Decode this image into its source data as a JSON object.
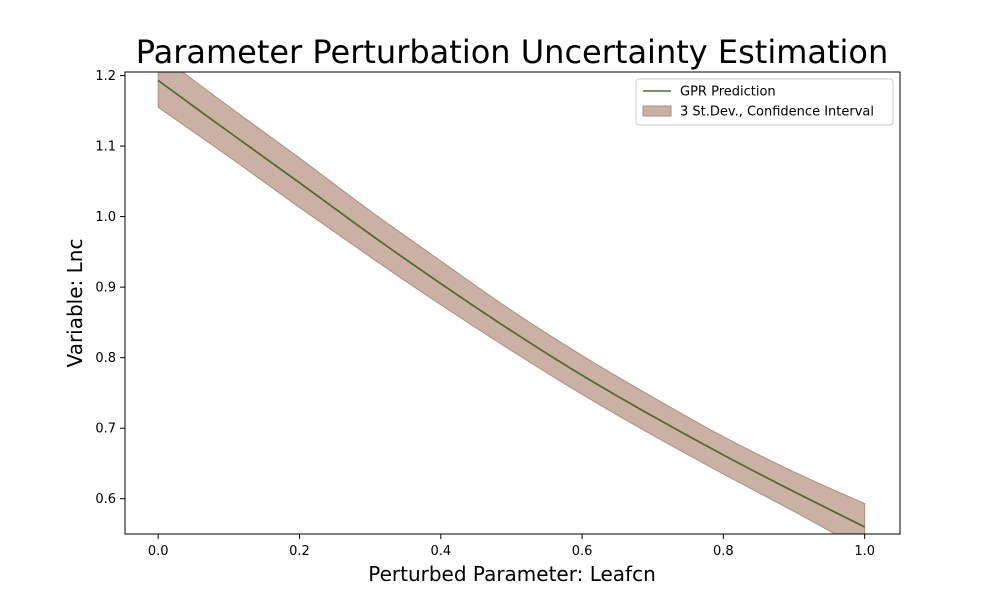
{
  "chart_data": {
    "type": "line",
    "title": "Parameter Perturbation Uncertainty Estimation",
    "xlabel": "Perturbed Parameter: Leafcn",
    "ylabel": "Variable: Lnc",
    "xlim": [
      -0.047,
      1.05
    ],
    "ylim": [
      0.55,
      1.205
    ],
    "x_ticks": [
      0.0,
      0.2,
      0.4,
      0.6,
      0.8,
      1.0
    ],
    "x_tick_labels": [
      "0.0",
      "0.2",
      "0.4",
      "0.6",
      "0.8",
      "1.0"
    ],
    "y_ticks": [
      0.6,
      0.7,
      0.8,
      0.9,
      1.0,
      1.1,
      1.2
    ],
    "y_tick_labels": [
      "0.6",
      "0.7",
      "0.8",
      "0.9",
      "1.0",
      "1.1",
      "1.2"
    ],
    "grid": false,
    "legend_position": "top-right",
    "series": [
      {
        "name": "GPR Prediction",
        "kind": "line",
        "color": "#556b2f",
        "x": [
          0.0,
          0.1,
          0.2,
          0.3,
          0.4,
          0.5,
          0.6,
          0.7,
          0.8,
          0.9,
          1.0
        ],
        "y": [
          1.193,
          1.12,
          1.048,
          0.975,
          0.905,
          0.838,
          0.775,
          0.717,
          0.662,
          0.61,
          0.56
        ]
      },
      {
        "name": "3 St.Dev., Confidence Interval",
        "kind": "band",
        "color": "#bc9b8c",
        "edge_color": "#ad8c7c",
        "x": [
          0.0,
          0.1,
          0.2,
          0.3,
          0.4,
          0.5,
          0.6,
          0.7,
          0.8,
          0.9,
          1.0
        ],
        "lower": [
          1.155,
          1.085,
          1.013,
          0.943,
          0.875,
          0.81,
          0.748,
          0.69,
          0.635,
          0.582,
          0.527
        ],
        "upper": [
          1.231,
          1.156,
          1.083,
          1.008,
          0.937,
          0.867,
          0.803,
          0.744,
          0.688,
          0.638,
          0.593
        ]
      }
    ]
  }
}
